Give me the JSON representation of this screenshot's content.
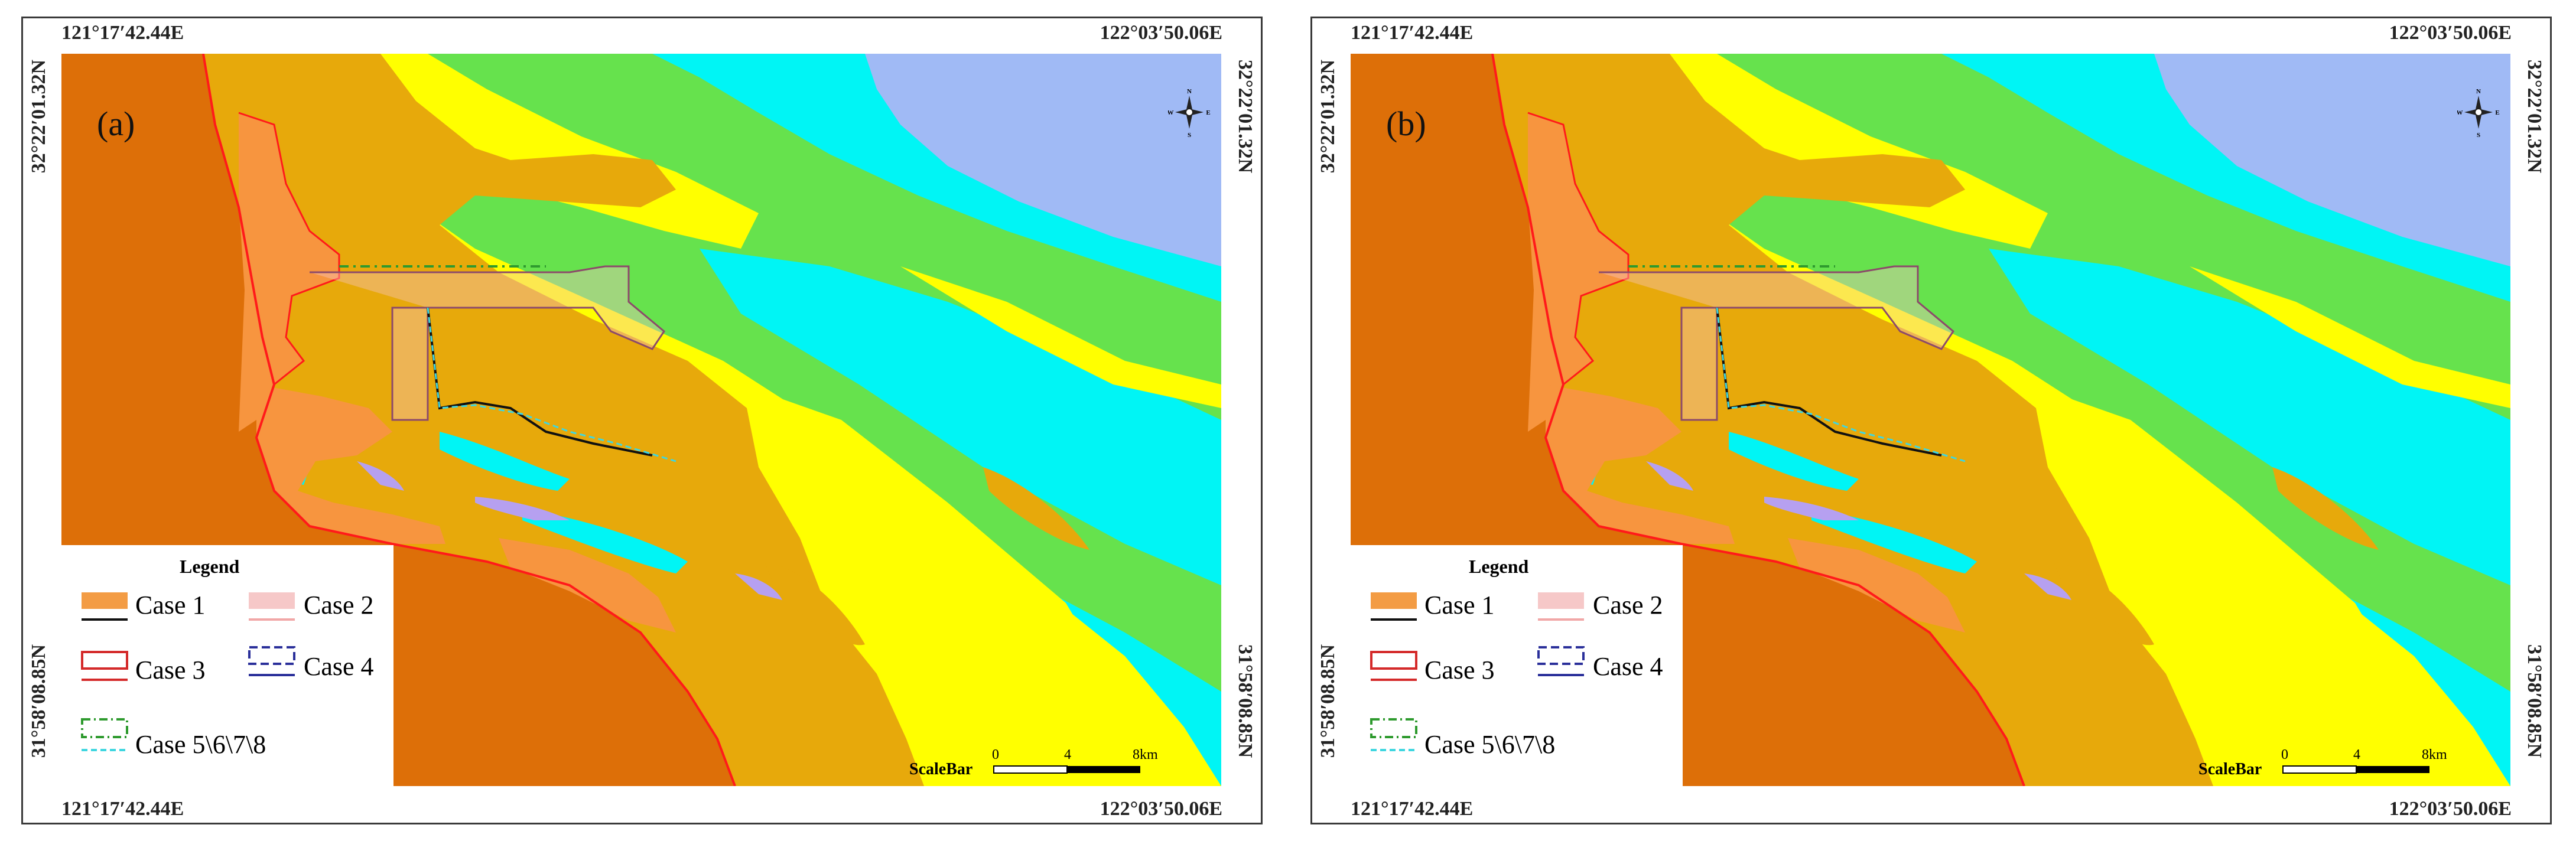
{
  "panels": [
    {
      "label": "(a)",
      "coords": {
        "top_left": "121°17′42.44E",
        "top_right": "122°03′50.06E",
        "bottom_left": "121°17′42.44E",
        "bottom_right": "122°03′50.06E",
        "left_top": "32°22′01.32N",
        "left_bottom": "31°58′08.85N",
        "right_top": "32°22′01.32N",
        "right_bottom": "31°58′08.85N"
      }
    },
    {
      "label": "(b)",
      "coords": {
        "top_left": "121°17′42.44E",
        "top_right": "122°03′50.06E",
        "bottom_left": "121°17′42.44E",
        "bottom_right": "122°03′50.06E",
        "left_top": "32°22′01.32N",
        "left_bottom": "31°58′08.85N",
        "right_top": "32°22′01.32N",
        "right_bottom": "31°58′08.85N"
      }
    }
  ],
  "legend": {
    "title": "Legend",
    "items": [
      {
        "label": "Case 1",
        "fill": "#f39c44",
        "line": "#111111"
      },
      {
        "label": "Case 2",
        "fill": "#f6c8c8",
        "line": "#f1a7a7"
      },
      {
        "label": "Case 3",
        "stroke": "#d42a2a",
        "line": "#d42a2a"
      },
      {
        "label": "Case 4",
        "stroke": "#2a2f9a",
        "line": "#2a2f9a"
      },
      {
        "label": "Case 5\\6\\7\\8",
        "stroke": "#2e9a2e",
        "line": "#3fd6e0"
      }
    ]
  },
  "compass": {
    "n": "N",
    "s": "S",
    "e": "E",
    "w": "W"
  },
  "scalebar": {
    "title": "ScaleBar",
    "ticks": [
      "0",
      "4",
      "8km"
    ]
  },
  "colors": {
    "land": "#dd6f08",
    "reclaimed": "#f7953f",
    "shallow_flat": "#e7a90b",
    "yellow_zone": "#ffff00",
    "green_zone": "#66e24d",
    "cyan_zone": "#00f5f5",
    "deep_sea": "#a0baf5",
    "lavender_patch": "#b6a0f0",
    "boundary": "#ff1a1a",
    "case1_line": "#111111",
    "case2_line": "#f6c0c0",
    "case4_line": "#2a2f9a",
    "case58_green": "#2e9a2e",
    "case58_cyan": "#3fd6e0"
  }
}
